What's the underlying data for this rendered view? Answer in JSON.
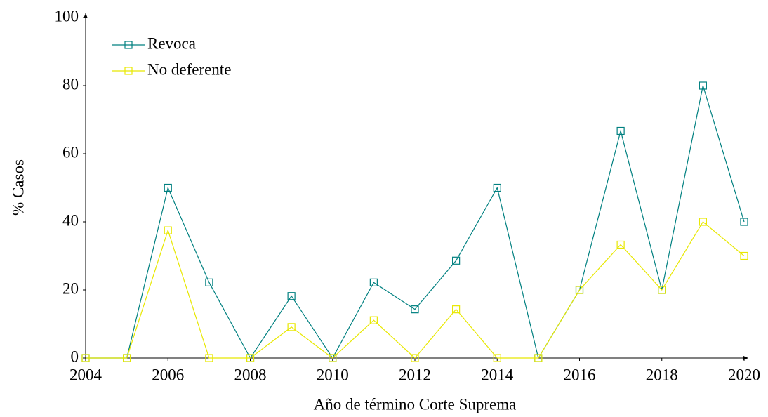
{
  "chart_data": {
    "type": "line",
    "x_label": "Año de término Corte Suprema",
    "y_label": "% Casos",
    "x": [
      2004,
      2005,
      2006,
      2007,
      2008,
      2009,
      2010,
      2011,
      2012,
      2013,
      2014,
      2015,
      2016,
      2017,
      2018,
      2019,
      2020
    ],
    "series": [
      {
        "name": "Revoca",
        "color": "#008080",
        "values": [
          0,
          0,
          50,
          22.2,
          0,
          18.2,
          0,
          22.2,
          14.3,
          28.6,
          50,
          0,
          20,
          66.7,
          20,
          80,
          40
        ]
      },
      {
        "name": "No deferente",
        "color": "#e8e800",
        "values": [
          0,
          0,
          37.5,
          0,
          0,
          9.1,
          0,
          11.1,
          0,
          14.3,
          0,
          0,
          20,
          33.3,
          20,
          40,
          30
        ]
      }
    ],
    "xlim": [
      2004,
      2020
    ],
    "xticks": [
      2004,
      2006,
      2008,
      2010,
      2012,
      2014,
      2016,
      2018,
      2020
    ],
    "ylim": [
      0,
      100
    ],
    "yticks": [
      0,
      20,
      40,
      60,
      80,
      100
    ],
    "legend": "upper left"
  }
}
